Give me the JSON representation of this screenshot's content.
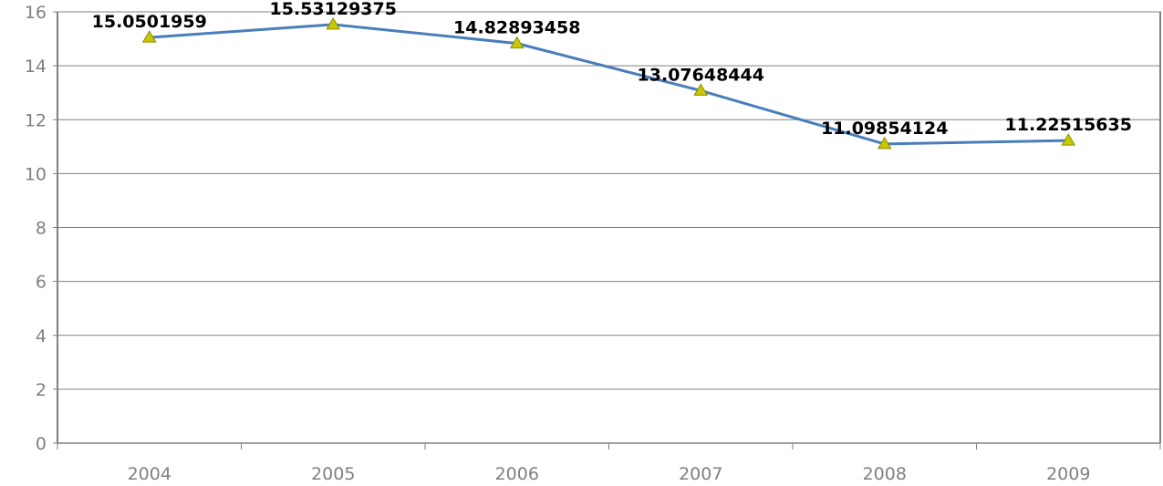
{
  "chart_data": {
    "type": "line",
    "title": "",
    "xlabel": "",
    "ylabel": "",
    "categories": [
      "2004",
      "2005",
      "2006",
      "2007",
      "2008",
      "2009"
    ],
    "series": [
      {
        "values": [
          15.0501959,
          15.53129375,
          14.82893458,
          13.07648444,
          11.09854124,
          11.22515635
        ],
        "labels": [
          "15.0501959",
          "15.53129375",
          "14.82893458",
          "13.07648444",
          "11.09854124",
          "11.22515635"
        ],
        "color": "#4a7ebb",
        "marker": "triangle",
        "marker_color": "#c8c800"
      }
    ],
    "ylim": [
      0,
      16
    ],
    "yticks": [
      "0",
      "2",
      "4",
      "6",
      "8",
      "10",
      "12",
      "14",
      "16"
    ],
    "grid": true,
    "legend": "none"
  }
}
